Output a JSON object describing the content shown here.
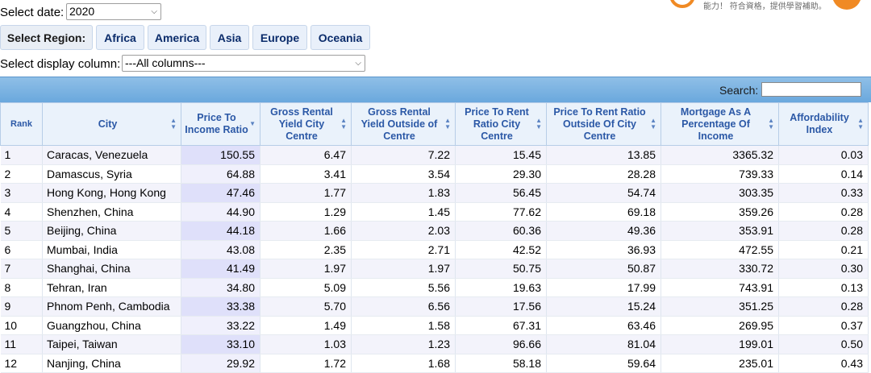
{
  "date_select": {
    "label": "Select date:",
    "value": "2020"
  },
  "ad": {
    "text": "能力！ 符合資格，提供學習補助。"
  },
  "region": {
    "label": "Select Region:",
    "buttons": [
      "Africa",
      "America",
      "Asia",
      "Europe",
      "Oceania"
    ]
  },
  "column_select": {
    "label": "Select display column:",
    "value": "---All columns---"
  },
  "search": {
    "label": "Search:",
    "value": ""
  },
  "table": {
    "headers": [
      "Rank",
      "City",
      "Price To Income Ratio",
      "Gross Rental Yield City Centre",
      "Gross Rental Yield Outside of Centre",
      "Price To Rent Ratio City Centre",
      "Price To Rent Ratio Outside Of City Centre",
      "Mortgage As A Percentage Of Income",
      "Affordability Index"
    ],
    "sorted_column": "Price To Income Ratio",
    "rows": [
      [
        "1",
        "Caracas, Venezuela",
        "150.55",
        "6.47",
        "7.22",
        "15.45",
        "13.85",
        "3365.32",
        "0.03"
      ],
      [
        "2",
        "Damascus, Syria",
        "64.88",
        "3.41",
        "3.54",
        "29.30",
        "28.28",
        "739.33",
        "0.14"
      ],
      [
        "3",
        "Hong Kong, Hong Kong",
        "47.46",
        "1.77",
        "1.83",
        "56.45",
        "54.74",
        "303.35",
        "0.33"
      ],
      [
        "4",
        "Shenzhen, China",
        "44.90",
        "1.29",
        "1.45",
        "77.62",
        "69.18",
        "359.26",
        "0.28"
      ],
      [
        "5",
        "Beijing, China",
        "44.18",
        "1.66",
        "2.03",
        "60.36",
        "49.36",
        "353.91",
        "0.28"
      ],
      [
        "6",
        "Mumbai, India",
        "43.08",
        "2.35",
        "2.71",
        "42.52",
        "36.93",
        "472.55",
        "0.21"
      ],
      [
        "7",
        "Shanghai, China",
        "41.49",
        "1.97",
        "1.97",
        "50.75",
        "50.87",
        "330.72",
        "0.30"
      ],
      [
        "8",
        "Tehran, Iran",
        "34.80",
        "5.09",
        "5.56",
        "19.63",
        "17.99",
        "743.91",
        "0.13"
      ],
      [
        "9",
        "Phnom Penh, Cambodia",
        "33.38",
        "5.70",
        "6.56",
        "17.56",
        "15.24",
        "351.25",
        "0.28"
      ],
      [
        "10",
        "Guangzhou, China",
        "33.22",
        "1.49",
        "1.58",
        "67.31",
        "63.46",
        "269.95",
        "0.37"
      ],
      [
        "11",
        "Taipei, Taiwan",
        "33.10",
        "1.03",
        "1.23",
        "96.66",
        "81.04",
        "199.01",
        "0.50"
      ],
      [
        "12",
        "Nanjing, China",
        "29.92",
        "1.72",
        "1.68",
        "58.18",
        "59.64",
        "235.01",
        "0.43"
      ]
    ]
  }
}
